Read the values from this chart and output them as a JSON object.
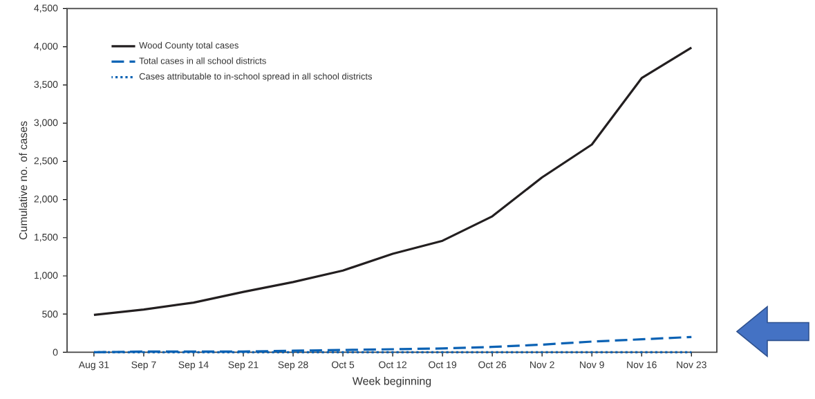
{
  "chart_data": {
    "type": "line",
    "xlabel": "Week beginning",
    "ylabel": "Cumulative no. of cases",
    "categories": [
      "Aug 31",
      "Sep 7",
      "Sep 14",
      "Sep 21",
      "Sep 28",
      "Oct 5",
      "Oct 12",
      "Oct 19",
      "Oct 26",
      "Nov 2",
      "Nov 9",
      "Nov 16",
      "Nov 23"
    ],
    "series": [
      {
        "name": "Wood County total cases",
        "color": "#231f20",
        "line_style": "solid",
        "values": [
          490,
          560,
          650,
          790,
          920,
          1070,
          1290,
          1460,
          1780,
          2290,
          2720,
          3590,
          3990
        ]
      },
      {
        "name": "Total cases in all school districts",
        "color": "#0b62b4",
        "line_style": "dashed",
        "values": [
          0,
          10,
          10,
          10,
          20,
          30,
          40,
          50,
          70,
          100,
          140,
          170,
          200
        ]
      },
      {
        "name": "Cases attributable to in-school spread in all school districts",
        "color": "#0b62b4",
        "line_style": "dotted",
        "values": [
          0,
          0,
          0,
          0,
          0,
          0,
          0,
          0,
          0,
          0,
          0,
          0,
          0
        ]
      }
    ],
    "ylim": [
      0,
      4500
    ],
    "yticks": [
      0,
      500,
      {
        "value": 1000,
        "label": "1,000"
      },
      {
        "value": 1500,
        "label": "1,500"
      },
      {
        "value": 2000,
        "label": "2,000"
      },
      {
        "value": 2500,
        "label": "2,500"
      },
      {
        "value": 3000,
        "label": "3,000"
      },
      {
        "value": 3500,
        "label": "3,500"
      },
      {
        "value": 4000,
        "label": "4,000"
      },
      {
        "value": 4500,
        "label": "4,500"
      }
    ],
    "grid": false,
    "legend": "top left",
    "marker": "none"
  }
}
